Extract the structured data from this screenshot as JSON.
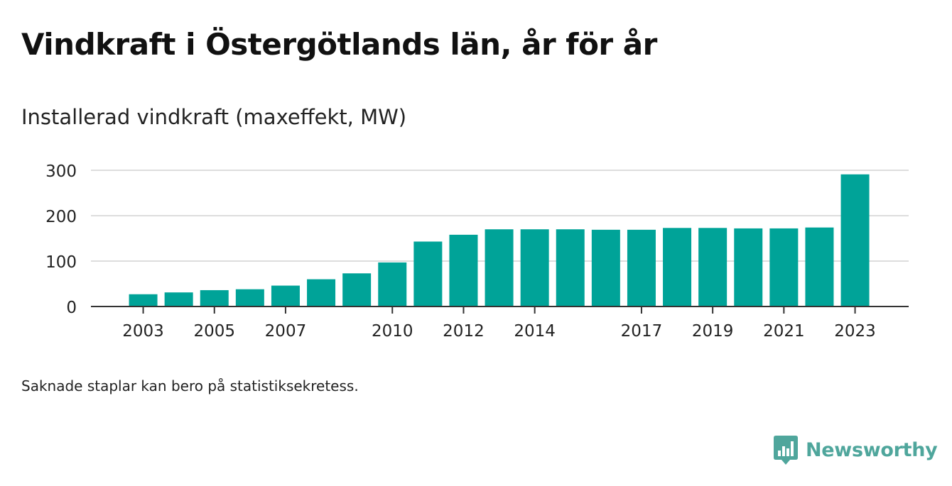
{
  "title": "Vindkraft i Östergötlands län, år för år",
  "subtitle": "Installerad vindkraft (maxeffekt, MW)",
  "note": "Saknade staplar kan bero på statistiksekretess.",
  "brand": {
    "name": "Newsworthy",
    "icon": "newsworthy-logo-icon",
    "color": "#4fa69c"
  },
  "colors": {
    "bar": "#00a398",
    "grid": "#dddddd",
    "axis": "#333333",
    "text": "#222222"
  },
  "chart_data": {
    "type": "bar",
    "categories": [
      "2003",
      "2004",
      "2005",
      "2006",
      "2007",
      "2008",
      "2009",
      "2010",
      "2011",
      "2012",
      "2013",
      "2014",
      "2015",
      "2016",
      "2017",
      "2018",
      "2019",
      "2020",
      "2021",
      "2022",
      "2023"
    ],
    "values": [
      27,
      31,
      36,
      38,
      46,
      60,
      73,
      97,
      143,
      158,
      170,
      170,
      170,
      169,
      169,
      173,
      173,
      172,
      172,
      174,
      291
    ],
    "xticks": [
      "2003",
      "2005",
      "2007",
      "2010",
      "2012",
      "2014",
      "2017",
      "2019",
      "2021",
      "2023"
    ],
    "yticks": [
      0,
      100,
      200,
      300
    ],
    "ylim": [
      0,
      300
    ],
    "xlabel": "",
    "ylabel": "",
    "grid": true,
    "legend": "none"
  }
}
